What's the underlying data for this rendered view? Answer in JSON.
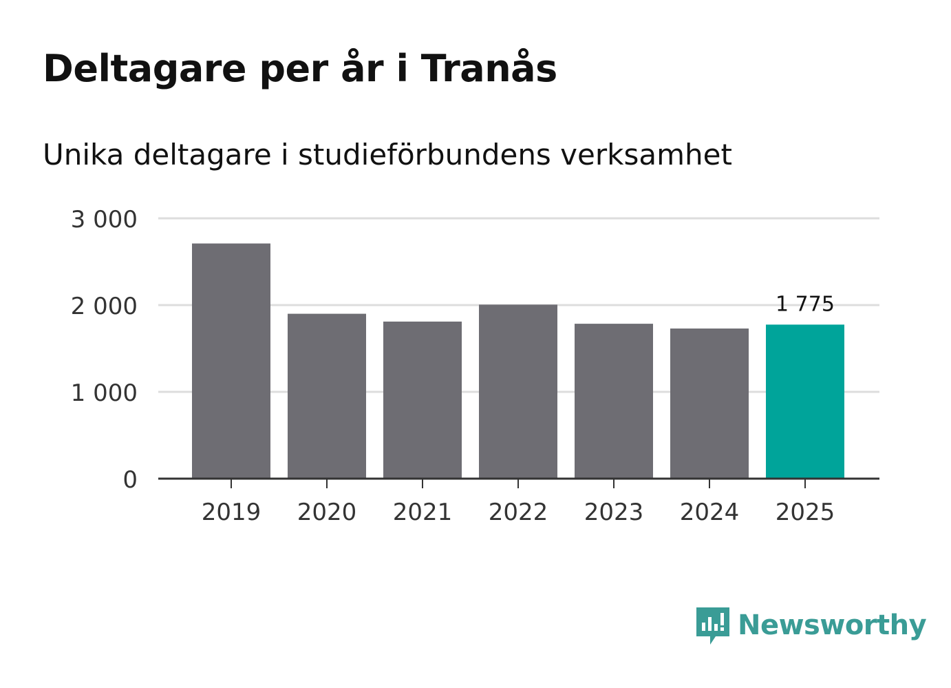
{
  "header": {
    "title": "Deltagare per år i Tranås",
    "subtitle": "Unika deltagare i studieförbundens verksamhet"
  },
  "chart_data": {
    "type": "bar",
    "title": "Deltagare per år i Tranås",
    "subtitle": "Unika deltagare i studieförbundens verksamhet",
    "xlabel": "",
    "ylabel": "",
    "categories": [
      "2019",
      "2020",
      "2021",
      "2022",
      "2023",
      "2024",
      "2025"
    ],
    "values": [
      2710,
      1900,
      1810,
      2005,
      1785,
      1730,
      1775
    ],
    "ylim": [
      0,
      3000
    ],
    "yticks": [
      0,
      1000,
      2000,
      3000
    ],
    "ytick_labels": [
      "0",
      "1 000",
      "2 000",
      "3 000"
    ],
    "highlight_index": 6,
    "data_labels": [
      {
        "index": 6,
        "text": "1 775"
      }
    ],
    "grid": true,
    "colors": {
      "bar": "#6e6d73",
      "highlight": "#00a49a",
      "grid": "#dddddd",
      "axis": "#333333"
    }
  },
  "brand": {
    "name": "Newsworthy",
    "logo_icon": "newsworthy-logo-icon",
    "color": "#3a9c96"
  }
}
